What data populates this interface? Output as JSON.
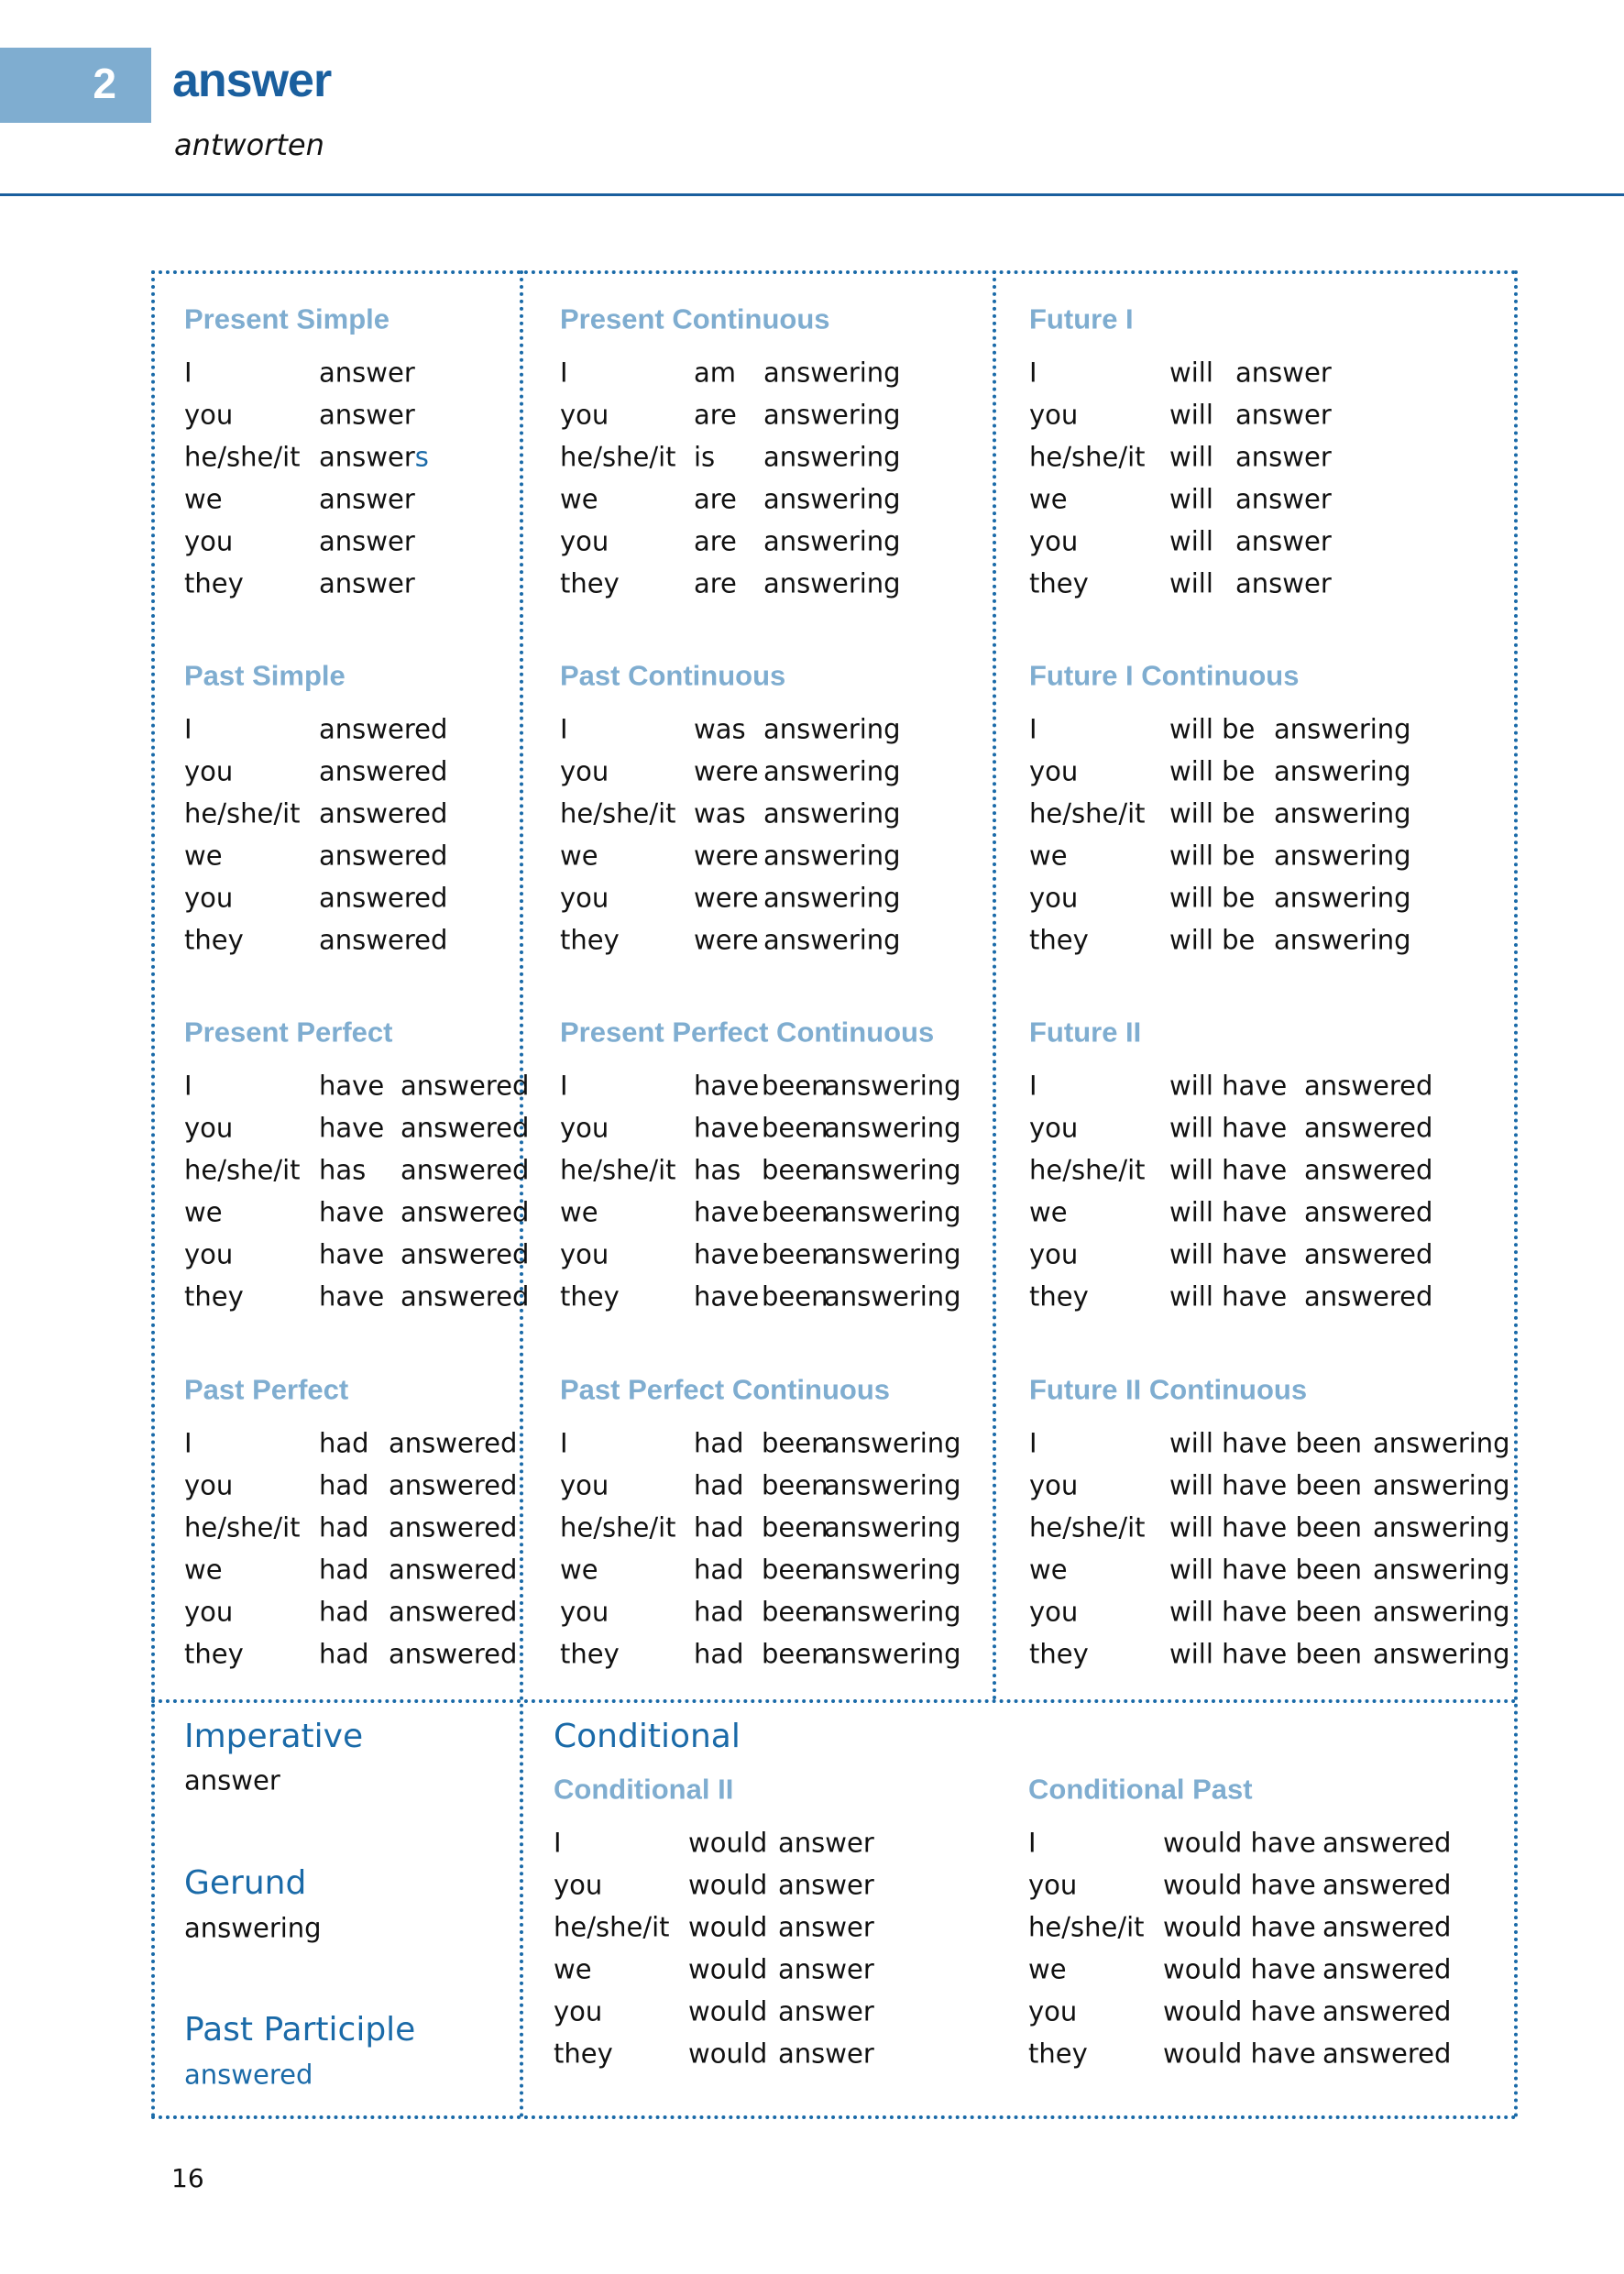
{
  "header": {
    "number": "2",
    "title": "answer",
    "translation": "antworten"
  },
  "colors": {
    "accent": "#1a6aa8",
    "heading_light": "#7fadd0",
    "number_box": "#7fadd0"
  },
  "tenses": [
    {
      "title": "Present Simple",
      "rows": [
        [
          "I",
          "answer"
        ],
        [
          "you",
          "answer"
        ],
        [
          "he/she/it",
          [
            "answer",
            "s"
          ]
        ],
        [
          "we",
          "answer"
        ],
        [
          "you",
          "answer"
        ],
        [
          "they",
          "answer"
        ]
      ]
    },
    {
      "title": "Present Continuous",
      "rows": [
        [
          "I",
          "am",
          "answering"
        ],
        [
          "you",
          "are",
          "answering"
        ],
        [
          "he/she/it",
          "is",
          "answering"
        ],
        [
          "we",
          "are",
          "answering"
        ],
        [
          "you",
          "are",
          "answering"
        ],
        [
          "they",
          "are",
          "answering"
        ]
      ]
    },
    {
      "title": "Future I",
      "rows": [
        [
          "I",
          "will",
          "answer"
        ],
        [
          "you",
          "will",
          "answer"
        ],
        [
          "he/she/it",
          "will",
          "answer"
        ],
        [
          "we",
          "will",
          "answer"
        ],
        [
          "you",
          "will",
          "answer"
        ],
        [
          "they",
          "will",
          "answer"
        ]
      ]
    },
    {
      "title": "Past Simple",
      "rows": [
        [
          "I",
          "answered"
        ],
        [
          "you",
          "answered"
        ],
        [
          "he/she/it",
          "answered"
        ],
        [
          "we",
          "answered"
        ],
        [
          "you",
          "answered"
        ],
        [
          "they",
          "answered"
        ]
      ]
    },
    {
      "title": "Past Continuous",
      "rows": [
        [
          "I",
          "was",
          "answering"
        ],
        [
          "you",
          "were",
          "answering"
        ],
        [
          "he/she/it",
          "was",
          "answering"
        ],
        [
          "we",
          "were",
          "answering"
        ],
        [
          "you",
          "were",
          "answering"
        ],
        [
          "they",
          "were",
          "answering"
        ]
      ]
    },
    {
      "title": "Future I Continuous",
      "rows": [
        [
          "I",
          "will be",
          "answering"
        ],
        [
          "you",
          "will be",
          "answering"
        ],
        [
          "he/she/it",
          "will be",
          "answering"
        ],
        [
          "we",
          "will be",
          "answering"
        ],
        [
          "you",
          "will be",
          "answering"
        ],
        [
          "they",
          "will be",
          "answering"
        ]
      ]
    },
    {
      "title": "Present Perfect",
      "rows": [
        [
          "I",
          "have",
          "answered"
        ],
        [
          "you",
          "have",
          "answered"
        ],
        [
          "he/she/it",
          "has",
          "answered"
        ],
        [
          "we",
          "have",
          "answered"
        ],
        [
          "you",
          "have",
          "answered"
        ],
        [
          "they",
          "have",
          "answered"
        ]
      ]
    },
    {
      "title": "Present Perfect Continuous",
      "rows": [
        [
          "I",
          "have",
          "been",
          "answering"
        ],
        [
          "you",
          "have",
          "been",
          "answering"
        ],
        [
          "he/she/it",
          "has",
          "been",
          "answering"
        ],
        [
          "we",
          "have",
          "been",
          "answering"
        ],
        [
          "you",
          "have",
          "been",
          "answering"
        ],
        [
          "they",
          "have",
          "been",
          "answering"
        ]
      ]
    },
    {
      "title": "Future II",
      "rows": [
        [
          "I",
          "will have",
          "answered"
        ],
        [
          "you",
          "will have",
          "answered"
        ],
        [
          "he/she/it",
          "will have",
          "answered"
        ],
        [
          "we",
          "will have",
          "answered"
        ],
        [
          "you",
          "will have",
          "answered"
        ],
        [
          "they",
          "will have",
          "answered"
        ]
      ]
    },
    {
      "title": "Past Perfect",
      "rows": [
        [
          "I",
          "had",
          "answered"
        ],
        [
          "you",
          "had",
          "answered"
        ],
        [
          "he/she/it",
          "had",
          "answered"
        ],
        [
          "we",
          "had",
          "answered"
        ],
        [
          "you",
          "had",
          "answered"
        ],
        [
          "they",
          "had",
          "answered"
        ]
      ]
    },
    {
      "title": "Past Perfect Continuous",
      "rows": [
        [
          "I",
          "had",
          "been",
          "answering"
        ],
        [
          "you",
          "had",
          "been",
          "answering"
        ],
        [
          "he/she/it",
          "had",
          "been",
          "answering"
        ],
        [
          "we",
          "had",
          "been",
          "answering"
        ],
        [
          "you",
          "had",
          "been",
          "answering"
        ],
        [
          "they",
          "had",
          "been",
          "answering"
        ]
      ]
    },
    {
      "title": "Future II Continuous",
      "rows": [
        [
          "I",
          "will have been",
          "answering"
        ],
        [
          "you",
          "will have been",
          "answering"
        ],
        [
          "he/she/it",
          "will have been",
          "answering"
        ],
        [
          "we",
          "will have been",
          "answering"
        ],
        [
          "you",
          "will have been",
          "answering"
        ],
        [
          "they",
          "will have been",
          "answering"
        ]
      ]
    },
    {
      "title": "Conditional II",
      "rows": [
        [
          "I",
          "would",
          "answer"
        ],
        [
          "you",
          "would",
          "answer"
        ],
        [
          "he/she/it",
          "would",
          "answer"
        ],
        [
          "we",
          "would",
          "answer"
        ],
        [
          "you",
          "would",
          "answer"
        ],
        [
          "they",
          "would",
          "answer"
        ]
      ]
    },
    {
      "title": "Conditional Past",
      "rows": [
        [
          "I",
          "would have",
          "answered"
        ],
        [
          "you",
          "would have",
          "answered"
        ],
        [
          "he/she/it",
          "would have",
          "answered"
        ],
        [
          "we",
          "would have",
          "answered"
        ],
        [
          "you",
          "would have",
          "answered"
        ],
        [
          "they",
          "would have",
          "answered"
        ]
      ]
    }
  ],
  "imperative": {
    "label": "Imperative",
    "value": "answer"
  },
  "gerund": {
    "label": "Gerund",
    "value": "answering"
  },
  "past_participle": {
    "label": "Past Participle",
    "value": "answered"
  },
  "conditional": {
    "label": "Conditional"
  },
  "page_number": "16"
}
